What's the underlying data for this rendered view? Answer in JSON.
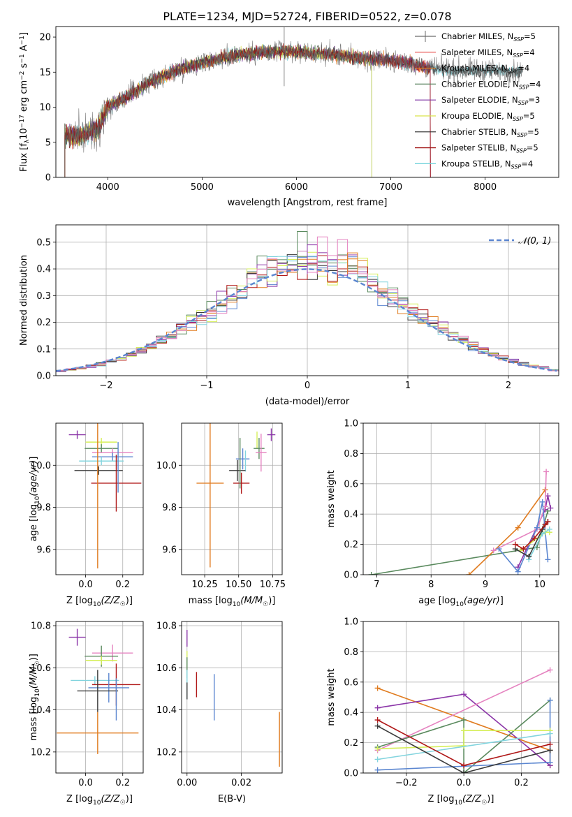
{
  "figure": {
    "title": "PLATE=1234, MJD=52724, FIBERID=0522, z=0.078"
  },
  "colors": {
    "models": [
      "#6a6a6a",
      "#e8504f",
      "#e07b1f",
      "#4f7a55",
      "#7a2ca0",
      "#d9e34a",
      "#2b2b2b",
      "#a11515",
      "#74d3dc"
    ],
    "c_orange": "#e07b1f",
    "c_green": "#5a8a5e",
    "c_purple": "#8b35a8",
    "c_yellow": "#d6ef5a",
    "c_black": "#3a3a3a",
    "c_red": "#b01818",
    "c_cyan": "#82d4de",
    "c_blue": "#5b86d0",
    "c_pink": "#e583c0",
    "normal_line": "#5b86d0"
  },
  "chart_data": [
    {
      "id": "spectrum",
      "type": "line",
      "xlabel": "wavelength [Angstrom, rest frame]",
      "ylabel": "Flux [f_λ10^-17 erg cm^-2 s^-1 A^-1]",
      "xlim": [
        3450,
        8780
      ],
      "ylim": [
        0,
        21.5
      ],
      "xticks": [
        4000,
        5000,
        6000,
        7000,
        8000
      ],
      "yticks": [
        0,
        5,
        10,
        15,
        20
      ],
      "grid": false,
      "legend_position": "top-right",
      "legend": [
        {
          "base": "Chabrier MILES, N",
          "sub": "SSP",
          "tail": "=5"
        },
        {
          "base": "Salpeter MILES, N",
          "sub": "SSP",
          "tail": "=4"
        },
        {
          "base": "Kroupa MILES, N",
          "sub": "SSP",
          "tail": "=4"
        },
        {
          "base": "Chabrier ELODIE, N",
          "sub": "SSP",
          "tail": "=4"
        },
        {
          "base": "Salpeter ELODIE, N",
          "sub": "SSP",
          "tail": "=3"
        },
        {
          "base": "Kroupa ELODIE, N",
          "sub": "SSP",
          "tail": "=5"
        },
        {
          "base": "Chabrier STELIB, N",
          "sub": "SSP",
          "tail": "=5"
        },
        {
          "base": "Salpeter STELIB, N",
          "sub": "SSP",
          "tail": "=5"
        },
        {
          "base": "Kroupa STELIB, N",
          "sub": "SSP",
          "tail": "=4"
        }
      ],
      "continuum": {
        "x": [
          3540,
          3700,
          3900,
          3950,
          4000,
          4200,
          4400,
          4600,
          4800,
          5000,
          5200,
          5400,
          5600,
          5800,
          6000,
          6200,
          6400,
          6600,
          6800,
          7000,
          7200,
          7400,
          7600,
          7800,
          8000,
          8200,
          8400
        ],
        "y": [
          6.0,
          5.8,
          7.0,
          8.5,
          10.0,
          11.5,
          13.2,
          14.5,
          15.6,
          16.3,
          17.0,
          17.5,
          17.8,
          18.0,
          17.9,
          17.7,
          17.5,
          17.1,
          16.9,
          16.7,
          16.3,
          15.6,
          15.3,
          15.1,
          15.3,
          15.2,
          15.0
        ]
      }
    },
    {
      "id": "residuals",
      "type": "histogram",
      "xlabel": "(data-model)/error",
      "ylabel": "Normed distribution",
      "xlim": [
        -2.5,
        2.5
      ],
      "ylim": [
        0,
        0.565
      ],
      "xticks": [
        -2,
        -1,
        0,
        1,
        2
      ],
      "yticks": [
        0.0,
        0.1,
        0.2,
        0.3,
        0.4,
        0.5
      ],
      "grid": true,
      "bin_width": 0.1,
      "legend_position": "top-right",
      "legend": [
        {
          "label": "𝒩(0, 1)"
        }
      ],
      "spikes": [
        {
          "x": -0.05,
          "y": 0.54,
          "color": "#5a8a5e"
        },
        {
          "x": 0.05,
          "y": 0.49,
          "color": "#8b35a8"
        },
        {
          "x": 0.15,
          "y": 0.52,
          "color": "#e583c0"
        },
        {
          "x": 0.35,
          "y": 0.51,
          "color": "#e583c0"
        },
        {
          "x": 0.45,
          "y": 0.46,
          "color": "#e07b1f"
        }
      ]
    },
    {
      "id": "age_vs_Z",
      "type": "errorbar",
      "xlabel_base": "Z [log",
      "xlabel_sub": "10",
      "xlabel_tail": "(Z/Z",
      "xlabel_end": ")]",
      "ylabel": "age  [log10(age/yr)]",
      "xlim": [
        -0.16,
        0.31
      ],
      "ylim": [
        9.48,
        10.2
      ],
      "xticks": [
        0.0,
        0.2
      ],
      "yticks": [
        9.6,
        9.8,
        10.0
      ],
      "grid": true,
      "points": [
        {
          "x": -0.045,
          "y": 10.145,
          "xerr": 0.045,
          "yerr": 0.0,
          "color": "#8b35a8"
        },
        {
          "x": 0.085,
          "y": 10.11,
          "xerr": 0.085,
          "yerr": 0.0,
          "color": "#d6ef5a"
        },
        {
          "x": 0.085,
          "y": 10.08,
          "xerr": 0.09,
          "yerr": 0.0,
          "color": "#5a8a5e"
        },
        {
          "x": 0.145,
          "y": 10.06,
          "xerr": 0.11,
          "yerr": 0.0,
          "color": "#e583c0"
        },
        {
          "x": 0.145,
          "y": 10.04,
          "xerr": 0.11,
          "yerr": 0.0,
          "color": "#5b86d0"
        },
        {
          "x": 0.085,
          "y": 10.02,
          "xerr": 0.12,
          "yerr": 0.0,
          "color": "#82d4de"
        },
        {
          "x": 0.07,
          "y": 9.975,
          "xerr": 0.13,
          "yerr": 0.0,
          "color": "#3a3a3a"
        },
        {
          "x": 0.165,
          "y": 9.915,
          "xerr": 0.135,
          "yerr": 0.135,
          "color": "#b01818"
        },
        {
          "x": 0.065,
          "y": 9.91,
          "xerr": 0.0,
          "yerr": 0.4,
          "color": "#e07b1f"
        },
        {
          "x": 0.175,
          "y": 9.99,
          "xerr": 0.0,
          "yerr": 0.12,
          "color": "#5b86d0"
        }
      ]
    },
    {
      "id": "age_vs_mass",
      "type": "errorbar",
      "xlabel": "mass [log10(M/M☉)]",
      "xlim": [
        10.08,
        10.82
      ],
      "ylim": [
        9.48,
        10.2
      ],
      "xticks": [
        10.25,
        10.5,
        10.75
      ],
      "yticks": [
        9.6,
        9.8,
        10.0
      ],
      "grid": true,
      "points": [
        {
          "x": 10.74,
          "y": 10.145,
          "xerr": 0.03,
          "yerr": 0.03,
          "color": "#8b35a8"
        },
        {
          "x": 10.635,
          "y": 10.12,
          "xerr": 0.0,
          "yerr": 0.04,
          "color": "#d6ef5a"
        },
        {
          "x": 10.65,
          "y": 10.08,
          "xerr": 0.04,
          "yerr": 0.05,
          "color": "#5a8a5e"
        },
        {
          "x": 10.665,
          "y": 10.06,
          "xerr": 0.04,
          "yerr": 0.09,
          "color": "#e583c0"
        },
        {
          "x": 10.53,
          "y": 10.03,
          "xerr": 0.05,
          "yerr": 0.05,
          "color": "#5b86d0"
        },
        {
          "x": 10.55,
          "y": 10.02,
          "xerr": 0.0,
          "yerr": 0.05,
          "color": "#82d4de"
        },
        {
          "x": 10.49,
          "y": 9.975,
          "xerr": 0.06,
          "yerr": 0.05,
          "color": "#3a3a3a"
        },
        {
          "x": 10.52,
          "y": 9.915,
          "xerr": 0.06,
          "yerr": 0.05,
          "color": "#b01818"
        },
        {
          "x": 10.29,
          "y": 9.915,
          "xerr": 0.1,
          "yerr": 0.4,
          "color": "#e07b1f"
        },
        {
          "x": 10.51,
          "y": 10.01,
          "xerr": 0.0,
          "yerr": 0.12,
          "color": "#5a8a5e"
        }
      ]
    },
    {
      "id": "weight_vs_age",
      "type": "line",
      "xlabel": "age  [log10(age/yr)]",
      "ylabel": "mass weight",
      "xlim": [
        6.75,
        10.35
      ],
      "ylim": [
        0,
        1.0
      ],
      "xticks": [
        7,
        8,
        9,
        10
      ],
      "yticks": [
        0.0,
        0.2,
        0.4,
        0.6,
        0.8,
        1.0
      ],
      "grid": true,
      "series": [
        {
          "color": "#5a8a5e",
          "x": [
            6.9,
            9.95,
            10.05,
            10.15
          ],
          "y": [
            0.0,
            0.18,
            0.3,
            0.42
          ]
        },
        {
          "color": "#e07b1f",
          "x": [
            8.7,
            9.6,
            10.1
          ],
          "y": [
            0.0,
            0.31,
            0.56
          ]
        },
        {
          "color": "#8b35a8",
          "x": [
            9.6,
            10.1,
            10.15,
            10.2
          ],
          "y": [
            0.05,
            0.43,
            0.52,
            0.44
          ]
        },
        {
          "color": "#e583c0",
          "x": [
            9.15,
            9.95,
            10.1,
            10.12
          ],
          "y": [
            0.16,
            0.3,
            0.45,
            0.68
          ]
        },
        {
          "color": "#5b86d0",
          "x": [
            9.25,
            9.6,
            9.95,
            10.05,
            10.15
          ],
          "y": [
            0.17,
            0.02,
            0.31,
            0.48,
            0.1
          ]
        },
        {
          "color": "#d6ef5a",
          "x": [
            9.65,
            10.1,
            10.18
          ],
          "y": [
            0.16,
            0.28,
            0.28
          ]
        },
        {
          "color": "#82d4de",
          "x": [
            9.8,
            10.05,
            10.18
          ],
          "y": [
            0.1,
            0.27,
            0.3
          ]
        },
        {
          "color": "#3a3a3a",
          "x": [
            9.55,
            9.8,
            10.05,
            10.15
          ],
          "y": [
            0.17,
            0.12,
            0.3,
            0.35
          ]
        },
        {
          "color": "#b01818",
          "x": [
            9.55,
            9.7,
            9.9,
            10.1,
            10.15
          ],
          "y": [
            0.2,
            0.17,
            0.24,
            0.33,
            0.35
          ]
        }
      ]
    },
    {
      "id": "mass_vs_Z",
      "type": "errorbar",
      "xlabel_base": "Z [log",
      "xlabel_sub": "10",
      "xlabel_tail": "(Z/Z",
      "xlabel_end": ")]",
      "ylabel": "mass [log10(M/M☉)]",
      "xlim": [
        -0.16,
        0.31
      ],
      "ylim": [
        10.1,
        10.82
      ],
      "xticks": [
        0.0,
        0.2
      ],
      "yticks": [
        10.2,
        10.4,
        10.6,
        10.8
      ],
      "grid": true,
      "points": [
        {
          "x": -0.045,
          "y": 10.745,
          "xerr": 0.045,
          "yerr": 0.04,
          "color": "#8b35a8"
        },
        {
          "x": 0.145,
          "y": 10.67,
          "xerr": 0.11,
          "yerr": 0.04,
          "color": "#e583c0"
        },
        {
          "x": 0.085,
          "y": 10.655,
          "xerr": 0.09,
          "yerr": 0.05,
          "color": "#5a8a5e"
        },
        {
          "x": 0.085,
          "y": 10.635,
          "xerr": 0.085,
          "yerr": 0.0,
          "color": "#d6ef5a"
        },
        {
          "x": 0.05,
          "y": 10.54,
          "xerr": 0.13,
          "yerr": 0.0,
          "color": "#82d4de"
        },
        {
          "x": 0.165,
          "y": 10.52,
          "xerr": 0.13,
          "yerr": 0.1,
          "color": "#b01818"
        },
        {
          "x": 0.125,
          "y": 10.505,
          "xerr": 0.11,
          "yerr": 0.07,
          "color": "#5b86d0"
        },
        {
          "x": 0.065,
          "y": 10.49,
          "xerr": 0.11,
          "yerr": 0.1,
          "color": "#3a3a3a"
        },
        {
          "x": 0.165,
          "y": 10.45,
          "xerr": 0.0,
          "yerr": 0.1,
          "color": "#5b86d0"
        },
        {
          "x": 0.065,
          "y": 10.29,
          "xerr": 0.22,
          "yerr": 0.1,
          "color": "#e07b1f"
        }
      ]
    },
    {
      "id": "mass_vs_ebv",
      "type": "errorbar",
      "xlabel": "E(B-V)",
      "xlim": [
        -0.002,
        0.035
      ],
      "ylim": [
        10.1,
        10.82
      ],
      "xticks": [
        0.0,
        0.02
      ],
      "yticks": [
        10.2,
        10.4,
        10.6,
        10.8
      ],
      "grid": true,
      "points": [
        {
          "x": 0.0,
          "y": 10.74,
          "xerr": 0.0,
          "yerr": 0.04,
          "color": "#8b35a8"
        },
        {
          "x": 0.0,
          "y": 10.64,
          "xerr": 0.0,
          "yerr": 0.04,
          "color": "#d6ef5a"
        },
        {
          "x": 0.0,
          "y": 10.6,
          "xerr": 0.0,
          "yerr": 0.05,
          "color": "#5a8a5e"
        },
        {
          "x": 0.0,
          "y": 10.52,
          "xerr": 0.0,
          "yerr": 0.07,
          "color": "#82d4de"
        },
        {
          "x": 0.0,
          "y": 10.49,
          "xerr": 0.0,
          "yerr": 0.04,
          "color": "#3a3a3a"
        },
        {
          "x": 0.0035,
          "y": 10.52,
          "xerr": 0.0,
          "yerr": 0.06,
          "color": "#b01818"
        },
        {
          "x": 0.01,
          "y": 10.46,
          "xerr": 0.0,
          "yerr": 0.11,
          "color": "#5b86d0"
        },
        {
          "x": 0.034,
          "y": 10.26,
          "xerr": 0.0,
          "yerr": 0.13,
          "color": "#e07b1f"
        }
      ]
    },
    {
      "id": "weight_vs_Z",
      "type": "line",
      "xlabel_base": "Z [log",
      "xlabel_sub": "10",
      "xlabel_tail": "(Z/Z",
      "xlabel_end": ")]",
      "ylabel": "mass weight",
      "xlim": [
        -0.35,
        0.33
      ],
      "ylim": [
        0,
        1.0
      ],
      "xticks": [
        -0.2,
        0.0,
        0.2
      ],
      "yticks": [
        0.0,
        0.2,
        0.4,
        0.6,
        0.8,
        1.0
      ],
      "grid": true,
      "series": [
        {
          "color": "#e07b1f",
          "x": [
            -0.3,
            0.3,
            0.3
          ],
          "y": [
            0.56,
            0.15,
            0.05
          ]
        },
        {
          "color": "#8b35a8",
          "x": [
            -0.3,
            0.0,
            0.3
          ],
          "y": [
            0.43,
            0.52,
            0.05
          ]
        },
        {
          "color": "#e583c0",
          "x": [
            -0.3,
            0.3
          ],
          "y": [
            0.15,
            0.68
          ]
        },
        {
          "color": "#5a8a5e",
          "x": [
            -0.3,
            0.0,
            0.0,
            0.3
          ],
          "y": [
            0.17,
            0.35,
            0.0,
            0.48
          ]
        },
        {
          "color": "#5b86d0",
          "x": [
            -0.3,
            0.3,
            0.3
          ],
          "y": [
            0.02,
            0.07,
            0.48
          ]
        },
        {
          "color": "#d6ef5a",
          "x": [
            -0.3,
            0.0,
            0.0,
            0.3
          ],
          "y": [
            0.16,
            0.18,
            0.28,
            0.28
          ]
        },
        {
          "color": "#82d4de",
          "x": [
            -0.3,
            0.3
          ],
          "y": [
            0.09,
            0.26
          ]
        },
        {
          "color": "#3a3a3a",
          "x": [
            -0.3,
            0.0,
            0.3
          ],
          "y": [
            0.31,
            0.0,
            0.15
          ]
        },
        {
          "color": "#b01818",
          "x": [
            -0.3,
            0.0,
            0.3
          ],
          "y": [
            0.35,
            0.05,
            0.19
          ]
        }
      ]
    }
  ]
}
